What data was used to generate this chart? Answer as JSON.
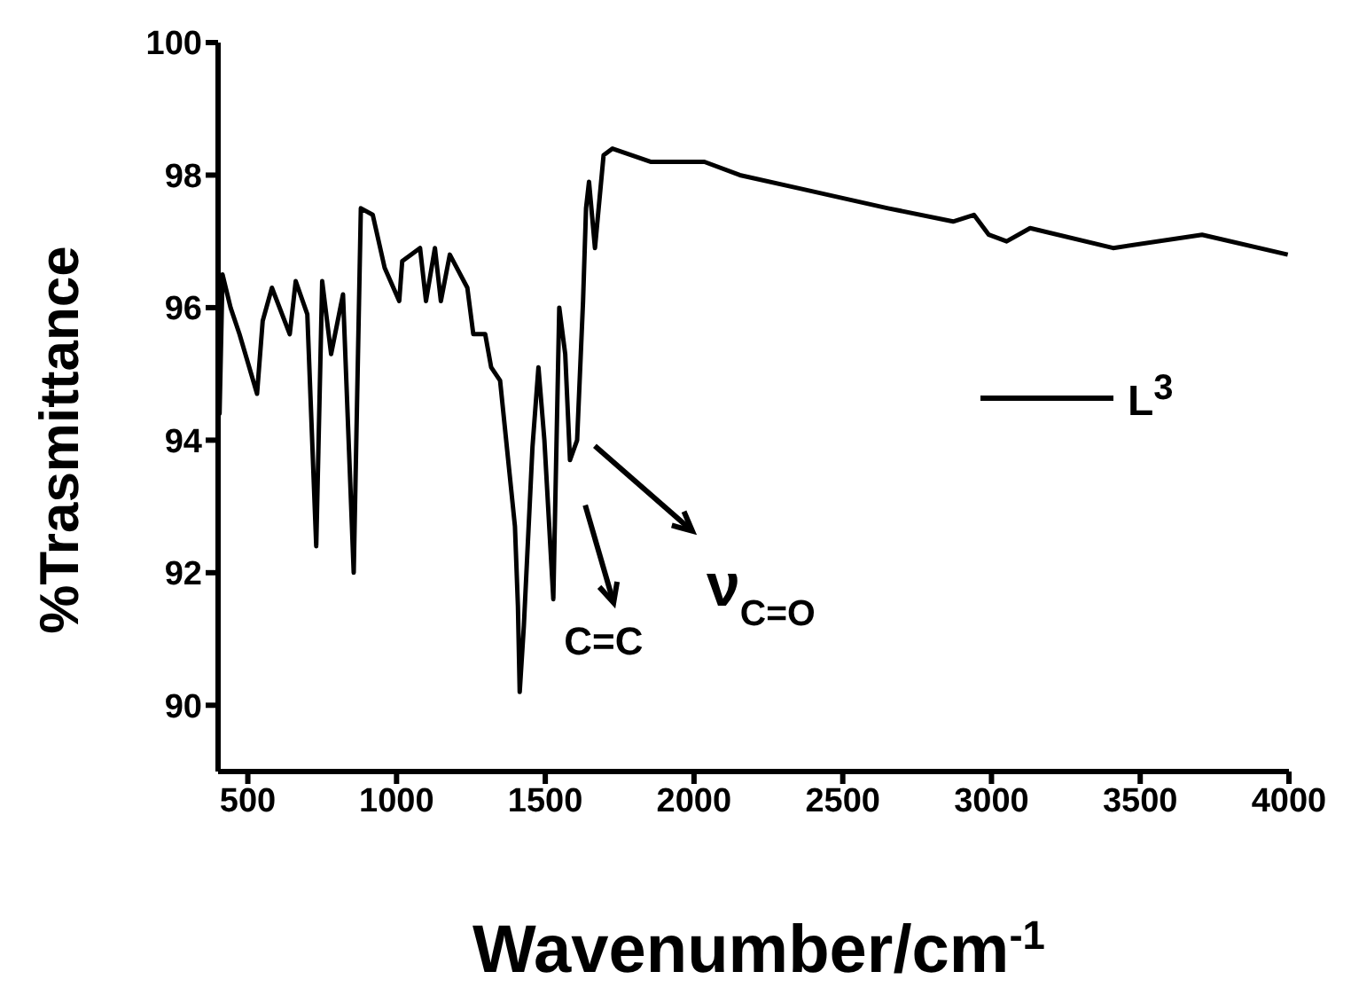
{
  "chart_data": {
    "type": "line",
    "xlabel": "Wavenumber/cm$^{-1}$",
    "ylabel": "%Trasmittance",
    "xlim": [
      400,
      4000
    ],
    "xticks": [
      500,
      1000,
      1500,
      2000,
      2500,
      3000,
      3500,
      4000
    ],
    "ylim": [
      89,
      100
    ],
    "yticks": [
      90,
      92,
      94,
      96,
      98,
      100
    ],
    "legend": "right",
    "series": [
      {
        "name": "L$^{3}$",
        "color": "#000000",
        "x": [
          400,
          405,
          415,
          442,
          472,
          531,
          550,
          581,
          641,
          661,
          700,
          730,
          750,
          780,
          820,
          856,
          880,
          920,
          960,
          1009,
          1019,
          1079,
          1099,
          1129,
          1149,
          1179,
          1238,
          1258,
          1298,
          1318,
          1348,
          1398,
          1408,
          1414,
          1428,
          1457,
          1477,
          1497,
          1527,
          1547,
          1567,
          1583,
          1607,
          1627,
          1637,
          1647,
          1667,
          1696,
          1726,
          1856,
          2035,
          2154,
          2353,
          2652,
          2871,
          2941,
          2991,
          3051,
          3130,
          3409,
          3708,
          3996
        ],
        "values": [
          96.0,
          94.4,
          96.5,
          96.0,
          95.6,
          94.7,
          95.8,
          96.3,
          95.6,
          96.4,
          95.9,
          92.4,
          96.4,
          95.3,
          96.2,
          92.0,
          97.5,
          97.4,
          96.6,
          96.1,
          96.7,
          96.9,
          96.1,
          96.9,
          96.1,
          96.8,
          96.3,
          95.6,
          95.6,
          95.1,
          94.9,
          92.7,
          91.5,
          90.2,
          91.2,
          93.9,
          95.1,
          94.0,
          91.6,
          96.0,
          95.3,
          93.7,
          94.0,
          96.1,
          97.5,
          97.9,
          96.9,
          98.3,
          98.4,
          98.2,
          98.2,
          98.0,
          97.8,
          97.5,
          97.3,
          97.4,
          97.1,
          97.0,
          97.2,
          96.9,
          97.1,
          96.8
        ]
      }
    ],
    "annotations": [
      {
        "text": "C=C",
        "x": 1527,
        "y": 91.6
      },
      {
        "text": "ν$_{C=O}$",
        "x": 1583,
        "y": 93.7
      }
    ]
  }
}
